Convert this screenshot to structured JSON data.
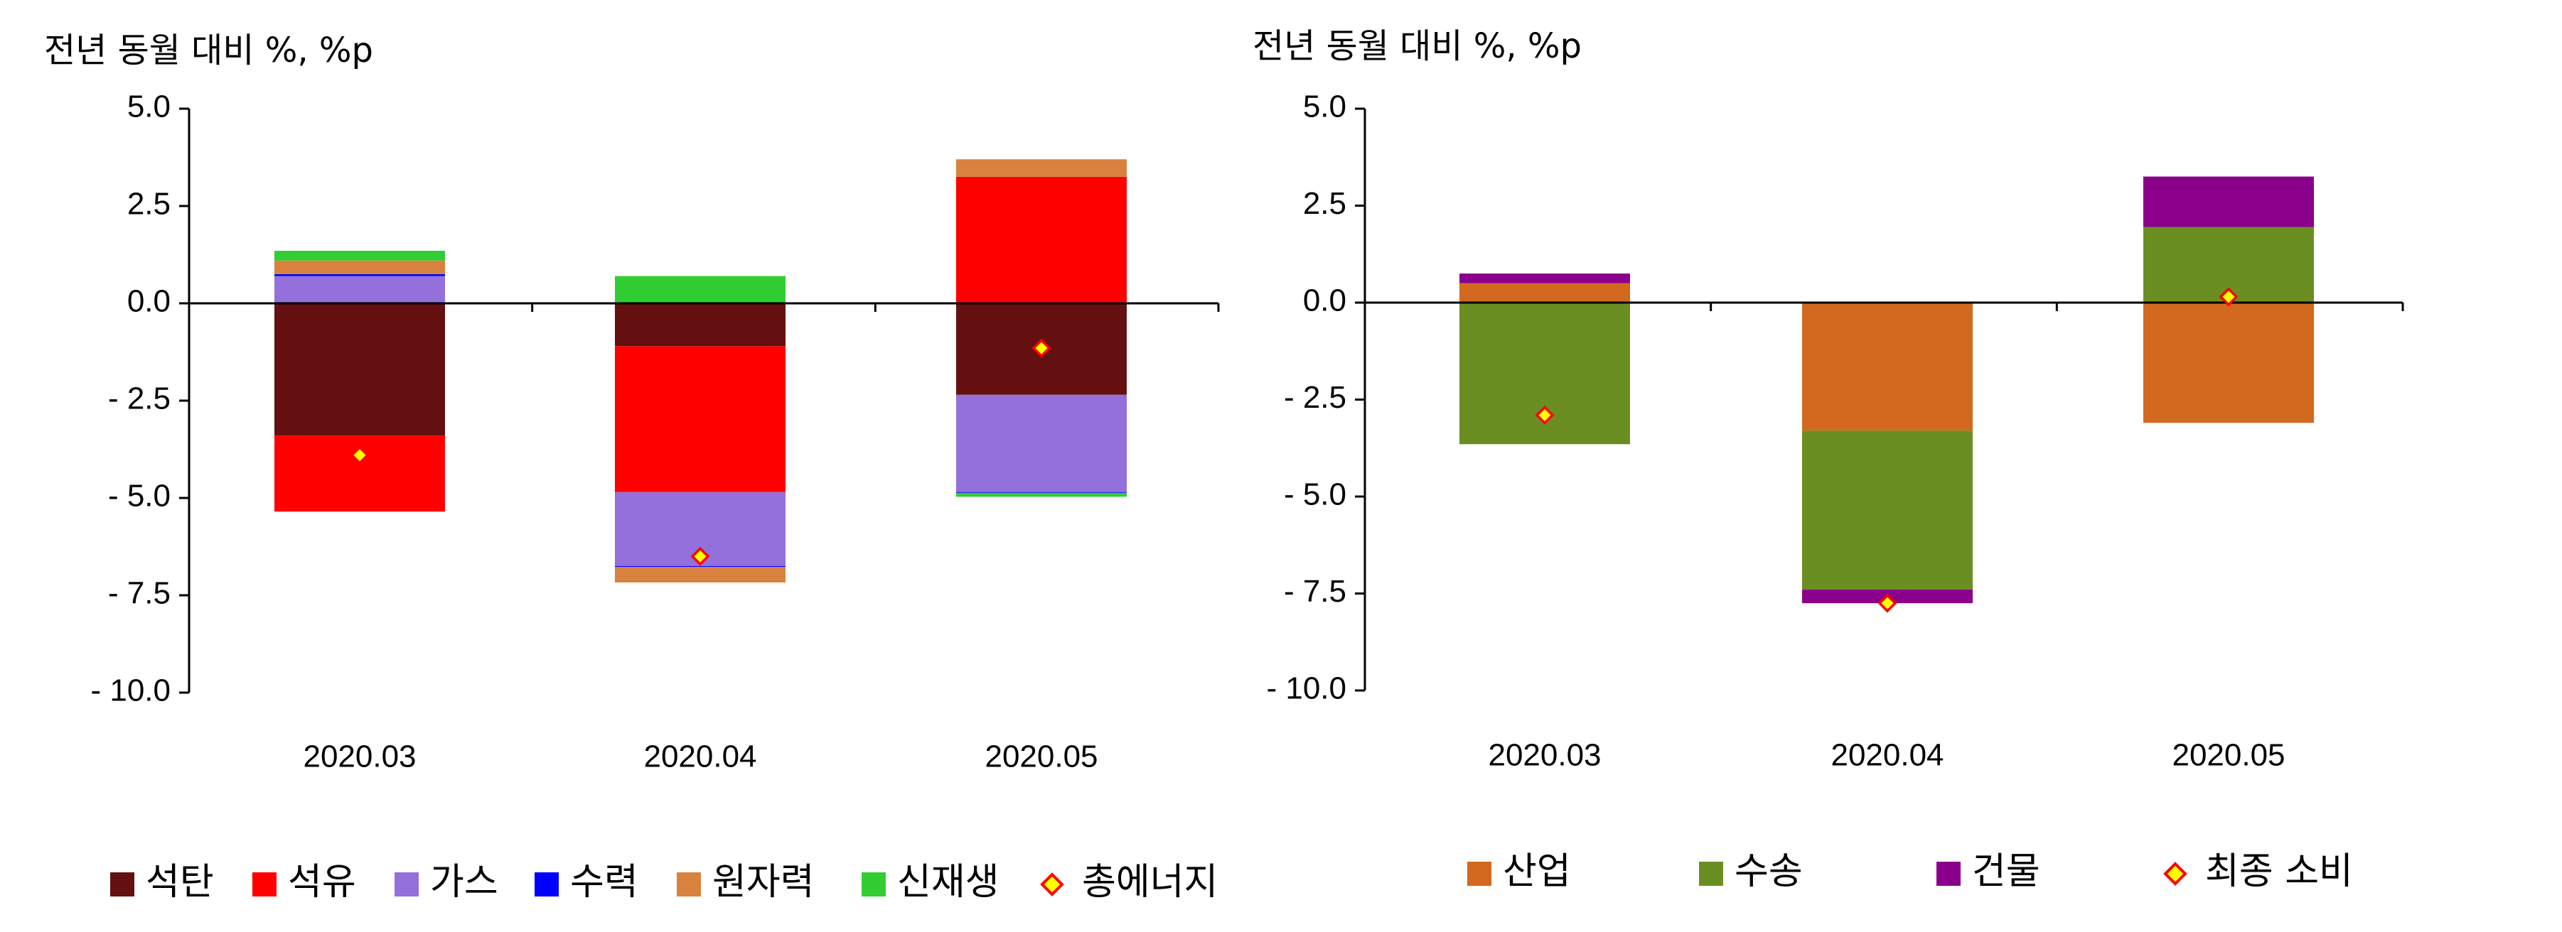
{
  "chart_data": [
    {
      "type": "bar",
      "stacked": true,
      "ylabel": "전년 동월 대비 %, %p",
      "ylim": [
        -10,
        5
      ],
      "yticks": [
        5.0,
        2.5,
        0.0,
        -2.5,
        -5.0,
        -7.5,
        -10.0
      ],
      "ytick_labels": [
        "5.0",
        "2.5",
        "0.0",
        "- 2.5",
        "- 5.0",
        "- 7.5",
        "- 10.0"
      ],
      "categories": [
        "2020.03",
        "2020.04",
        "2020.05"
      ],
      "series": [
        {
          "name": "석탄",
          "color": "#641010",
          "values": [
            -3.4,
            -1.1,
            -2.35
          ]
        },
        {
          "name": "석유",
          "color": "#ff0000",
          "values": [
            -1.95,
            -3.75,
            3.25
          ]
        },
        {
          "name": "가스",
          "color": "#9370db",
          "values": [
            0.7,
            -1.9,
            -2.5
          ]
        },
        {
          "name": "수력",
          "color": "#0000ff",
          "values": [
            0.05,
            -0.02,
            -0.02
          ]
        },
        {
          "name": "원자력",
          "color": "#d9813f",
          "values": [
            0.35,
            -0.4,
            0.45
          ]
        },
        {
          "name": "신재생",
          "color": "#32cd32",
          "values": [
            0.25,
            0.7,
            -0.1
          ]
        }
      ],
      "total": {
        "name": "총에너지",
        "color": "#ffff00",
        "edge": "#ff0000",
        "values": [
          -3.9,
          -6.5,
          -1.15
        ]
      },
      "legend": "bottom"
    },
    {
      "type": "bar",
      "stacked": true,
      "ylabel": "전년 동월 대비 %, %p",
      "ylim": [
        -10,
        5
      ],
      "yticks": [
        5.0,
        2.5,
        0.0,
        -2.5,
        -5.0,
        -7.5,
        -10.0
      ],
      "ytick_labels": [
        "5.0",
        "2.5",
        "0.0",
        "- 2.5",
        "- 5.0",
        "- 7.5",
        "- 10.0"
      ],
      "categories": [
        "2020.03",
        "2020.04",
        "2020.05"
      ],
      "series": [
        {
          "name": "산업",
          "color": "#d2691e",
          "values": [
            0.5,
            -3.3,
            -3.1
          ]
        },
        {
          "name": "수송",
          "color": "#6b8e23",
          "values": [
            -3.65,
            -4.1,
            1.95
          ]
        },
        {
          "name": "건물",
          "color": "#8b008b",
          "values": [
            0.25,
            -0.35,
            1.3
          ]
        }
      ],
      "total": {
        "name": "최종 소비",
        "color": "#ffff00",
        "edge": "#ff0000",
        "values": [
          -2.9,
          -7.75,
          0.15
        ]
      },
      "legend": "bottom"
    }
  ]
}
